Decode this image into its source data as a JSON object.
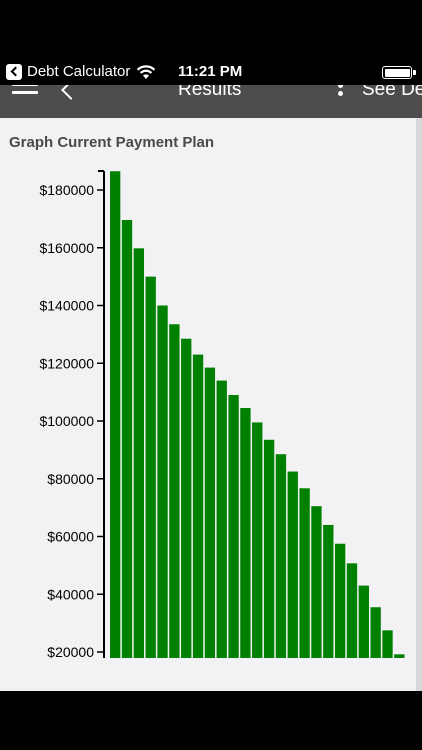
{
  "status_bar": {
    "back_app": "Debt Calculator",
    "time": "11:21 PM",
    "icons": [
      "back-app-icon",
      "wifi-icon",
      "battery-icon"
    ]
  },
  "nav": {
    "title": "Results",
    "right_action": "See De",
    "icons": [
      "menu-icon",
      "back-chevron-icon",
      "more-vertical-icon"
    ]
  },
  "content": {
    "section_title": "Graph Current Payment Plan"
  },
  "chart_data": {
    "type": "bar",
    "title": "Graph Current Payment Plan",
    "xlabel": "",
    "ylabel": "",
    "ylim": [
      18000,
      186000
    ],
    "y_ticks": [
      20000,
      40000,
      60000,
      80000,
      100000,
      120000,
      140000,
      160000,
      180000
    ],
    "y_tick_labels": [
      "$20000",
      "$40000",
      "$60000",
      "$80000",
      "$100000",
      "$120000",
      "$140000",
      "$160000",
      "$180000"
    ],
    "bar_color": "#008000",
    "values": [
      186500,
      169600,
      159800,
      150000,
      140000,
      133500,
      128500,
      123000,
      118500,
      114000,
      109000,
      104500,
      99500,
      93500,
      88500,
      82500,
      76700,
      70500,
      64000,
      57500,
      50700,
      43000,
      35500,
      27500,
      19200
    ]
  }
}
